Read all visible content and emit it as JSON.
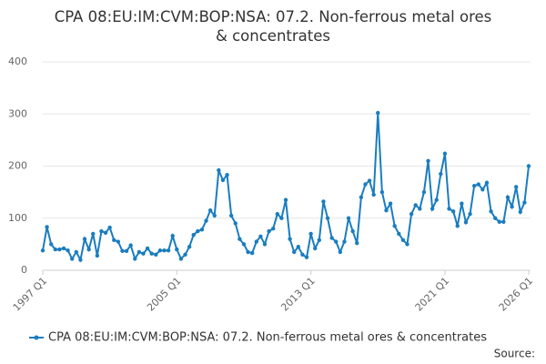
{
  "chart_data": {
    "type": "line",
    "title": "CPA 08:EU:IM:CVM:BOP:NSA: 07.2. Non-ferrous metal ores & concentrates",
    "source": "Source:",
    "categories": [
      "1997 Q1",
      null,
      null,
      null,
      null,
      null,
      null,
      null,
      null,
      null,
      null,
      null,
      null,
      null,
      null,
      null,
      null,
      null,
      null,
      null,
      null,
      null,
      null,
      null,
      null,
      null,
      null,
      null,
      null,
      null,
      null,
      null,
      "2005 Q1",
      null,
      null,
      null,
      null,
      null,
      null,
      null,
      null,
      null,
      null,
      null,
      null,
      null,
      null,
      null,
      null,
      null,
      null,
      null,
      null,
      null,
      null,
      null,
      null,
      null,
      null,
      null,
      null,
      null,
      null,
      null,
      "2013 Q1",
      null,
      null,
      null,
      null,
      null,
      null,
      null,
      null,
      null,
      null,
      null,
      null,
      null,
      null,
      null,
      null,
      null,
      null,
      null,
      null,
      null,
      null,
      null,
      null,
      null,
      null,
      null,
      null,
      null,
      null,
      null,
      "2021 Q1",
      null,
      null,
      null,
      null,
      null,
      null,
      null,
      null,
      null,
      null,
      null,
      null,
      null,
      null,
      null,
      null,
      null,
      null,
      null,
      "2026 Q1"
    ],
    "series": [
      {
        "name": "CPA 08:EU:IM:CVM:BOP:NSA: 07.2. Non-ferrous metal ores & concentrates",
        "color": "#1a7dbf",
        "values": [
          38,
          83,
          50,
          40,
          40,
          42,
          38,
          22,
          35,
          20,
          60,
          40,
          70,
          28,
          75,
          72,
          82,
          58,
          55,
          37,
          37,
          48,
          22,
          35,
          32,
          42,
          32,
          30,
          38,
          38,
          38,
          66,
          40,
          22,
          30,
          45,
          68,
          75,
          78,
          95,
          115,
          105,
          192,
          173,
          183,
          105,
          90,
          60,
          50,
          35,
          33,
          55,
          65,
          50,
          75,
          80,
          108,
          100,
          135,
          60,
          35,
          45,
          30,
          25,
          70,
          42,
          58,
          132,
          100,
          62,
          55,
          35,
          55,
          100,
          75,
          52,
          140,
          165,
          172,
          145,
          302,
          150,
          115,
          128,
          85,
          70,
          58,
          50,
          108,
          125,
          118,
          150,
          210,
          118,
          135,
          185,
          224,
          118,
          113,
          85,
          128,
          92,
          108,
          162,
          165,
          155,
          168,
          113,
          100,
          93,
          93,
          140,
          122,
          160,
          112,
          130,
          200
        ]
      }
    ],
    "ylim": [
      0,
      400
    ],
    "yticks": [
      0,
      100,
      200,
      300,
      400
    ],
    "grid": true
  }
}
